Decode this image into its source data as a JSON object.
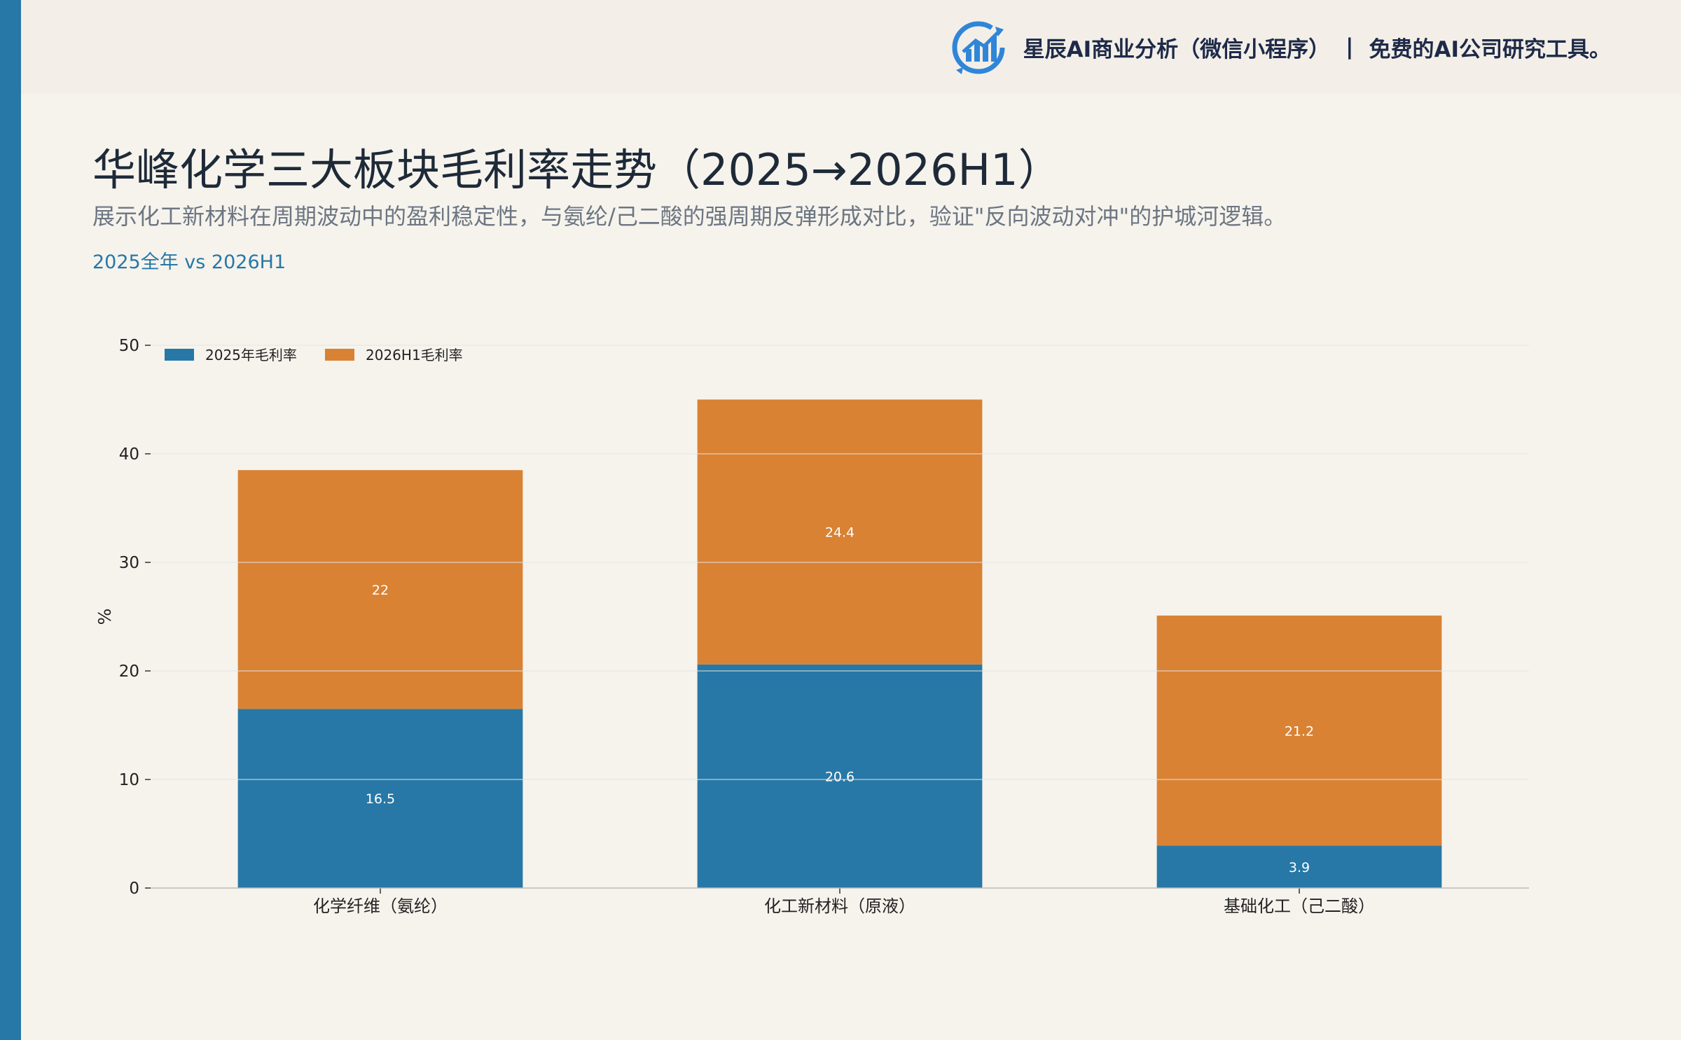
{
  "brand": {
    "name": "星辰AI商业分析（微信小程序）",
    "separator": "|",
    "tagline": "免费的AI公司研究工具。"
  },
  "header": {
    "title": "华峰化学三大板块毛利率走势（2025→2026H1）",
    "subtitle": "展示化工新材料在周期波动中的盈利稳定性，与氨纶/己二酸的强周期反弹形成对比，验证\"反向波动对冲\"的护城河逻辑。",
    "period": "2025全年 vs 2026H1"
  },
  "colors": {
    "accent": "#2778a6",
    "series_2025": "#2778a6",
    "series_2026": "#d98234",
    "background": "#f6f3ed"
  },
  "chart_data": {
    "type": "bar",
    "stacked": true,
    "categories": [
      "化学纤维（氨纶）",
      "化工新材料（原液）",
      "基础化工（己二酸）"
    ],
    "series": [
      {
        "name": "2025年毛利率",
        "values": [
          16.5,
          20.6,
          3.9
        ]
      },
      {
        "name": "2026H1毛利率",
        "values": [
          22,
          24.4,
          21.2
        ]
      }
    ],
    "ylabel": "%",
    "ylim": [
      0,
      50
    ],
    "yticks": [
      0,
      10,
      20,
      30,
      40,
      50
    ],
    "grid": true,
    "legend_position": "top-left"
  }
}
